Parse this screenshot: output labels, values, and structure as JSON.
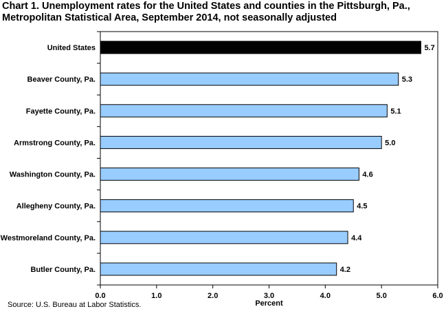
{
  "title_lines": [
    "Chart 1. Unemployment rates for the United States and counties in the Pittsburgh, Pa.,",
    "Metropolitan Statistical Area, September 2014, not seasonally adjusted"
  ],
  "source": "Source: U.S. Bureau at Labor Statistics.",
  "chart_data": {
    "type": "bar",
    "orientation": "horizontal",
    "title": "Chart 1. Unemployment rates for the United States and counties in the Pittsburgh, Pa., Metropolitan Statistical Area, September 2014, not seasonally adjusted",
    "xlabel": "Percent",
    "ylabel": "",
    "xlim": [
      0,
      6
    ],
    "xticks": [
      "0.0",
      "1.0",
      "2.0",
      "3.0",
      "4.0",
      "5.0",
      "6.0"
    ],
    "categories": [
      "United States",
      "Beaver County, Pa.",
      "Fayette County, Pa.",
      "Armstrong County, Pa.",
      "Washington County, Pa.",
      "Allegheny County, Pa.",
      "Westmoreland County, Pa.",
      "Butler County, Pa."
    ],
    "values": [
      5.7,
      5.3,
      5.1,
      5.0,
      4.6,
      4.5,
      4.4,
      4.2
    ],
    "value_labels": [
      "5.7",
      "5.3",
      "5.1",
      "5.0",
      "4.6",
      "4.5",
      "4.4",
      "4.2"
    ],
    "colors": {
      "highlight": "#000000",
      "bar": "#99ccff",
      "bar_stroke": "#000000"
    },
    "grid": false,
    "legend": "none"
  }
}
